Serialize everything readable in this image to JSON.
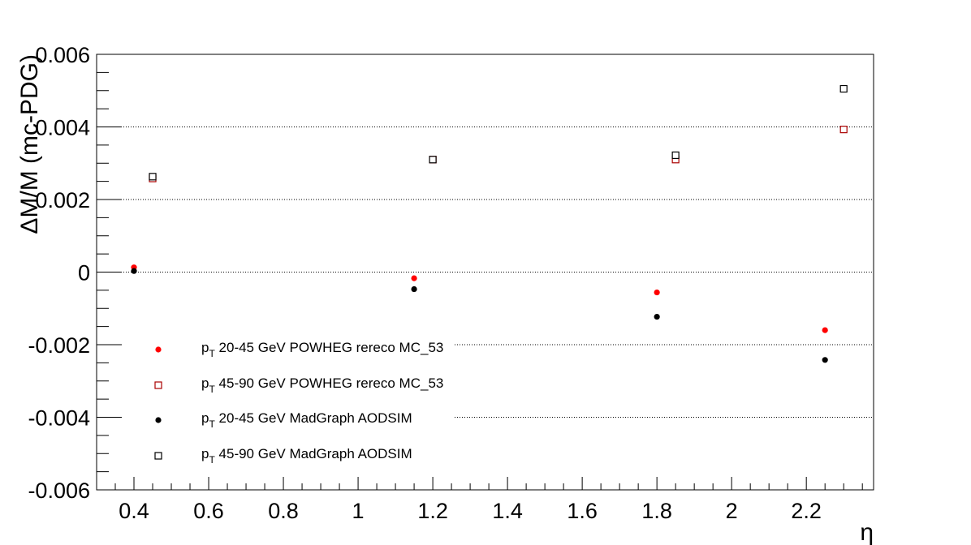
{
  "chart_data": {
    "type": "scatter",
    "title": "",
    "xlabel": "η",
    "ylabel": "ΔM/M (mc-PDG)",
    "xlim": [
      0.3,
      2.38
    ],
    "ylim": [
      -0.006,
      0.006
    ],
    "x_ticks": [
      "0.4",
      "0.6",
      "0.8",
      "1",
      "1.2",
      "1.4",
      "1.6",
      "1.8",
      "2",
      "2.2"
    ],
    "x_tick_values": [
      0.4,
      0.6,
      0.8,
      1.0,
      1.2,
      1.4,
      1.6,
      1.8,
      2.0,
      2.2
    ],
    "y_ticks": [
      "-0.006",
      "-0.004",
      "-0.002",
      "0",
      "0.002",
      "0.004",
      "0.006"
    ],
    "y_tick_values": [
      -0.006,
      -0.004,
      -0.002,
      0,
      0.002,
      0.004,
      0.006
    ],
    "grid": "horizontal-dotted",
    "legend_position": "bottom-left",
    "series": [
      {
        "name_prefix": "p",
        "name_sub": "T",
        "name_rest": " 20-45 GeV POWHEG rereco MC_53",
        "marker": "filled-circle",
        "color": "#ff0000",
        "points": [
          [
            0.4,
            0.00013
          ],
          [
            1.15,
            -0.00017
          ],
          [
            1.8,
            -0.00056
          ],
          [
            2.25,
            -0.0016
          ]
        ]
      },
      {
        "name_prefix": "p",
        "name_sub": "T",
        "name_rest": " 45-90 GeV POWHEG rereco MC_53",
        "marker": "open-square",
        "color": "#aa0000",
        "points": [
          [
            0.45,
            0.00258
          ],
          [
            1.2,
            0.0031
          ],
          [
            1.85,
            0.0031
          ],
          [
            2.3,
            0.00393
          ]
        ]
      },
      {
        "name_prefix": "p",
        "name_sub": "T",
        "name_rest": " 20-45 GeV MadGraph AODSIM",
        "marker": "filled-circle",
        "color": "#000000",
        "points": [
          [
            0.4,
            3e-05
          ],
          [
            1.15,
            -0.00047
          ],
          [
            1.8,
            -0.00123
          ],
          [
            2.25,
            -0.00242
          ]
        ]
      },
      {
        "name_prefix": "p",
        "name_sub": "T",
        "name_rest": " 45-90 GeV MadGraph AODSIM",
        "marker": "open-square",
        "color": "#000000",
        "points": [
          [
            0.45,
            0.00263
          ],
          [
            1.2,
            0.0031
          ],
          [
            1.85,
            0.00322
          ],
          [
            2.3,
            0.00505
          ]
        ]
      }
    ]
  }
}
